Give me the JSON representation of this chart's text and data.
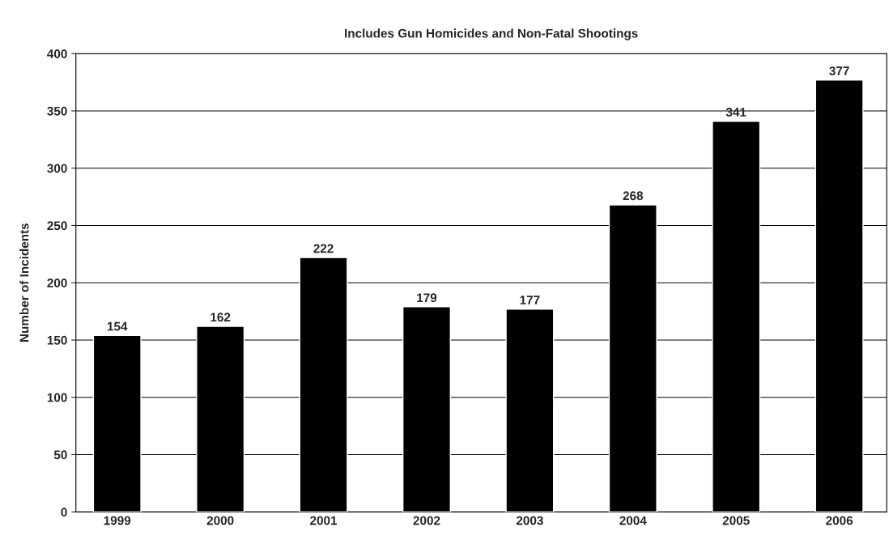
{
  "chart_data": {
    "type": "bar",
    "title": "Includes Gun Homicides and Non-Fatal Shootings",
    "ylabel": "Number of Incidents",
    "categories": [
      "1999",
      "2000",
      "2001",
      "2002",
      "2003",
      "2004",
      "2005",
      "2006"
    ],
    "values": [
      154,
      162,
      222,
      179,
      177,
      268,
      341,
      377
    ],
    "color": "#000000",
    "ylim": [
      0,
      400
    ],
    "yticks": [
      0,
      50,
      100,
      150,
      200,
      250,
      300,
      350,
      400
    ],
    "grid": "y",
    "data_labels": true
  }
}
